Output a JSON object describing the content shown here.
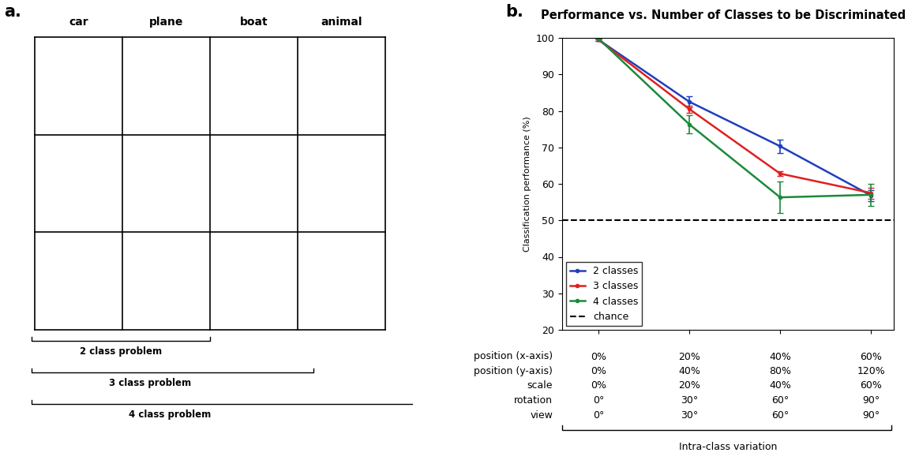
{
  "panel_a": {
    "label": "a.",
    "columns": [
      "car",
      "plane",
      "boat",
      "animal"
    ],
    "rows": 3,
    "problems": [
      {
        "label": "2 class problem",
        "classes": 2
      },
      {
        "label": "3 class problem",
        "classes": 3
      },
      {
        "label": "4 class problem",
        "classes": 4
      }
    ]
  },
  "chart_data": {
    "panel_label": "b.",
    "type": "line",
    "title": "Performance vs. Number of Classes to be Discriminated",
    "y_label": "Classification performance (%)",
    "x_label": "Intra-class variation",
    "categories": [
      null,
      null,
      null,
      null
    ],
    "x_table": [
      {
        "name": "position (x-axis)",
        "values": [
          "0%",
          "20%",
          "40%",
          "60%"
        ]
      },
      {
        "name": "position (y-axis)",
        "values": [
          "0%",
          "40%",
          "80%",
          "120%"
        ]
      },
      {
        "name": "scale",
        "values": [
          "0%",
          "20%",
          "40%",
          "60%"
        ]
      },
      {
        "name": "rotation",
        "values": [
          "0°",
          "30°",
          "60°",
          "90°"
        ]
      },
      {
        "name": "view",
        "values": [
          "0°",
          "30°",
          "60°",
          "90°"
        ]
      }
    ],
    "series": [
      {
        "name": "2 classes",
        "color": "#1f3fbf",
        "marker": "o",
        "values": [
          99.5,
          82.5,
          70.3,
          56.8
        ],
        "errors": [
          0.3,
          1.5,
          1.8,
          1.5
        ]
      },
      {
        "name": "3 classes",
        "color": "#e02020",
        "marker": "o",
        "values": [
          99.5,
          80.5,
          62.8,
          57.5
        ],
        "errors": [
          0.3,
          1.0,
          0.6,
          1.5
        ]
      },
      {
        "name": "4 classes",
        "color": "#1a8a3a",
        "marker": "o",
        "values": [
          99.8,
          76.3,
          56.3,
          57.0
        ],
        "errors": [
          0.3,
          2.5,
          4.3,
          3.0
        ]
      }
    ],
    "reference": {
      "name": "chance",
      "value": 50,
      "color": "#000000",
      "line_style": "dashed"
    },
    "ylim": [
      20,
      100
    ],
    "yticks": [
      20,
      30,
      40,
      50,
      60,
      70,
      80,
      90,
      100
    ],
    "legend": "lower left",
    "tick_labels": "y",
    "grid": false
  }
}
